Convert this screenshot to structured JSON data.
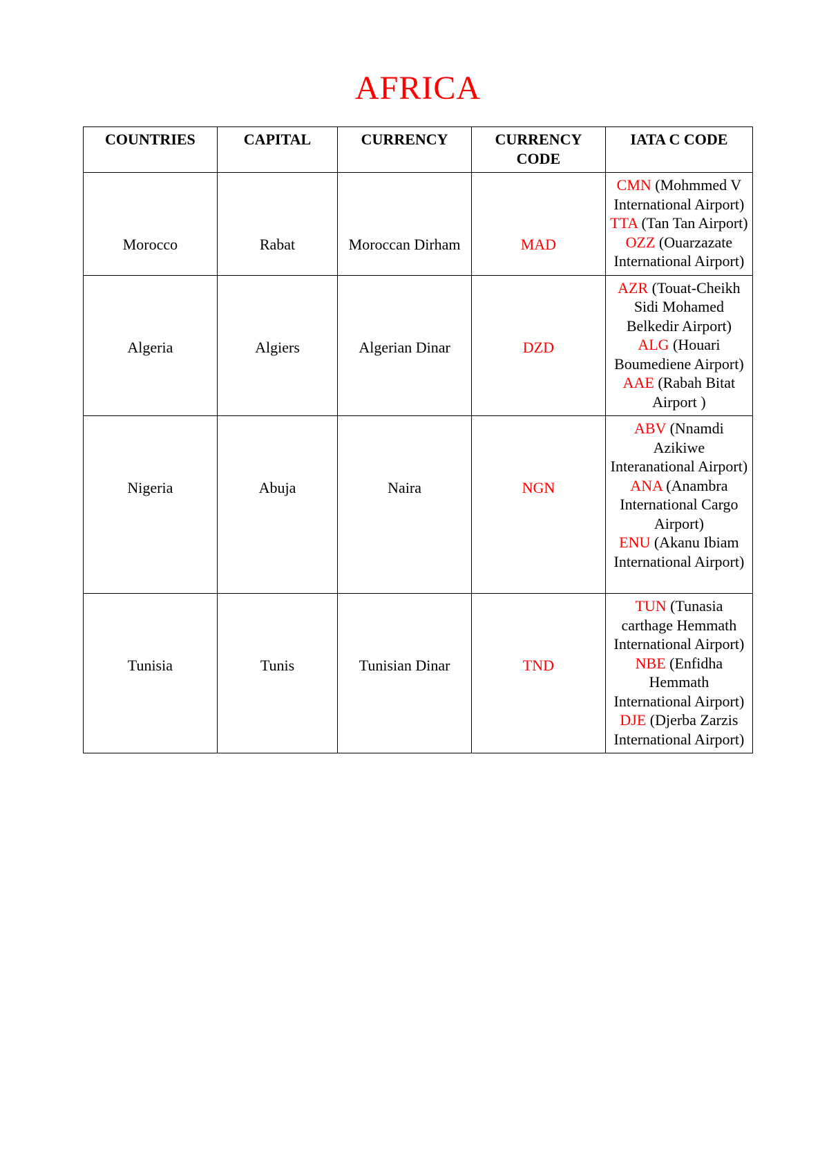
{
  "colors": {
    "title": "#ff0000",
    "code": "#ff0000",
    "text": "#000000",
    "border": "#000000",
    "background": "#ffffff"
  },
  "title": "AFRICA",
  "table": {
    "column_widths_pct": [
      20,
      18,
      20,
      20,
      22
    ],
    "columns": [
      "COUNTRIES",
      "CAPITAL",
      "CURRENCY",
      "CURRENCY CODE",
      "IATA C CODE"
    ],
    "rows": [
      {
        "country": "Morocco",
        "capital": "Rabat",
        "currency": "Moroccan Dirham",
        "currency_code": "MAD",
        "iata": [
          {
            "code": "CMN",
            "desc": "(Mohmmed V International Airport)"
          },
          {
            "code": "TTA",
            "desc": "(Tan Tan Airport)"
          },
          {
            "code": "OZZ",
            "desc": "(Ouarzazate International Airport)"
          }
        ]
      },
      {
        "country": "Algeria",
        "capital": "Algiers",
        "currency": "Algerian Dinar",
        "currency_code": "DZD",
        "iata": [
          {
            "code": "AZR",
            "desc": "(Touat-Cheikh Sidi Mohamed Belkedir Airport)"
          },
          {
            "code": "ALG",
            "desc": "(Houari Boumediene Airport)"
          },
          {
            "code": "AAE",
            "desc": "(Rabah Bitat Airport )"
          }
        ]
      },
      {
        "country": "Nigeria",
        "capital": "Abuja",
        "currency": "Naira",
        "currency_code": "NGN",
        "iata": [
          {
            "code": "ABV",
            "desc": "(Nnamdi Azikiwe Interanational Airport)"
          },
          {
            "code": "ANA",
            "desc": "(Anambra International Cargo Airport)"
          },
          {
            "code": "ENU",
            "desc": "(Akanu Ibiam International Airport)"
          }
        ],
        "extra_bottom_space": true
      },
      {
        "country": "Tunisia",
        "capital": "Tunis",
        "currency": "Tunisian Dinar",
        "currency_code": "TND",
        "iata": [
          {
            "code": "TUN",
            "desc": "(Tunasia carthage Hemmath International Airport)"
          },
          {
            "code": "NBE",
            "desc": "(Enfidha Hemmath International Airport)"
          },
          {
            "code": "DJE",
            "desc": "(Djerba Zarzis International Airport)"
          }
        ]
      }
    ]
  }
}
